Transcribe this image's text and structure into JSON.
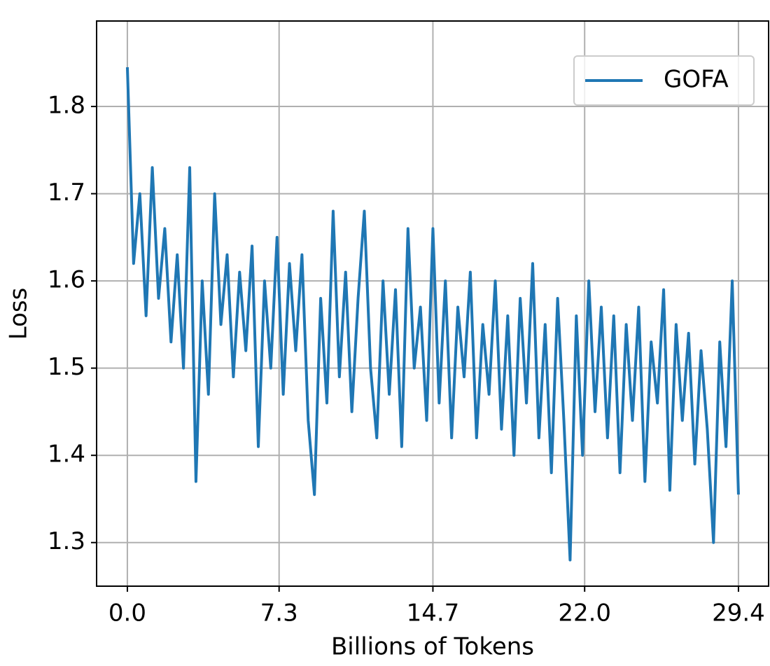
{
  "chart_data": {
    "type": "line",
    "x": [
      0,
      0.3,
      0.6,
      0.9,
      1.2,
      1.5,
      1.8,
      2.1,
      2.4,
      2.7,
      3.0,
      3.3,
      3.6,
      3.9,
      4.2,
      4.5,
      4.8,
      5.1,
      5.4,
      5.7,
      6.0,
      6.3,
      6.6,
      6.9,
      7.2,
      7.5,
      7.8,
      8.1,
      8.4,
      8.7,
      9.0,
      9.3,
      9.6,
      9.9,
      10.2,
      10.5,
      10.8,
      11.1,
      11.4,
      11.7,
      12.0,
      12.3,
      12.6,
      12.9,
      13.2,
      13.5,
      13.8,
      14.1,
      14.4,
      14.7,
      15.0,
      15.3,
      15.6,
      15.9,
      16.2,
      16.5,
      16.8,
      17.1,
      17.4,
      17.7,
      18.0,
      18.3,
      18.6,
      18.9,
      19.2,
      19.5,
      19.8,
      20.1,
      20.4,
      20.7,
      21.0,
      21.3,
      21.6,
      21.9,
      22.2,
      22.5,
      22.8,
      23.1,
      23.4,
      23.7,
      24.0,
      24.3,
      24.6,
      24.9,
      25.2,
      25.5,
      25.8,
      26.1,
      26.4,
      26.7,
      27.0,
      27.3,
      27.6,
      27.9,
      28.2,
      28.5,
      28.8,
      29.1,
      29.4
    ],
    "series": [
      {
        "name": "GOFA",
        "color": "#1f77b4",
        "values": [
          1.845,
          1.62,
          1.7,
          1.56,
          1.73,
          1.58,
          1.66,
          1.53,
          1.63,
          1.5,
          1.73,
          1.37,
          1.6,
          1.47,
          1.7,
          1.55,
          1.63,
          1.49,
          1.61,
          1.52,
          1.64,
          1.41,
          1.6,
          1.5,
          1.65,
          1.47,
          1.62,
          1.52,
          1.63,
          1.44,
          1.355,
          1.58,
          1.46,
          1.68,
          1.49,
          1.61,
          1.45,
          1.58,
          1.68,
          1.5,
          1.42,
          1.6,
          1.47,
          1.59,
          1.41,
          1.66,
          1.5,
          1.57,
          1.44,
          1.66,
          1.46,
          1.6,
          1.42,
          1.57,
          1.49,
          1.61,
          1.42,
          1.55,
          1.47,
          1.6,
          1.43,
          1.56,
          1.4,
          1.58,
          1.46,
          1.62,
          1.42,
          1.55,
          1.38,
          1.58,
          1.44,
          1.28,
          1.56,
          1.4,
          1.6,
          1.45,
          1.57,
          1.42,
          1.56,
          1.38,
          1.55,
          1.44,
          1.57,
          1.37,
          1.53,
          1.46,
          1.59,
          1.36,
          1.55,
          1.44,
          1.54,
          1.39,
          1.52,
          1.43,
          1.3,
          1.53,
          1.41,
          1.6,
          1.355
        ]
      }
    ],
    "xlabel": "Billions of Tokens",
    "ylabel": "Loss",
    "xlim": [
      -1.48,
      30.85
    ],
    "ylim": [
      1.25,
      1.898
    ],
    "xticks": [
      {
        "value": 0,
        "label": "0.0"
      },
      7.3,
      14.7,
      {
        "value": 22,
        "label": "22.0"
      },
      29.4
    ],
    "yticks": [
      1.3,
      1.4,
      1.5,
      1.6,
      1.7,
      1.8
    ],
    "grid": true,
    "legend": "upper right"
  }
}
